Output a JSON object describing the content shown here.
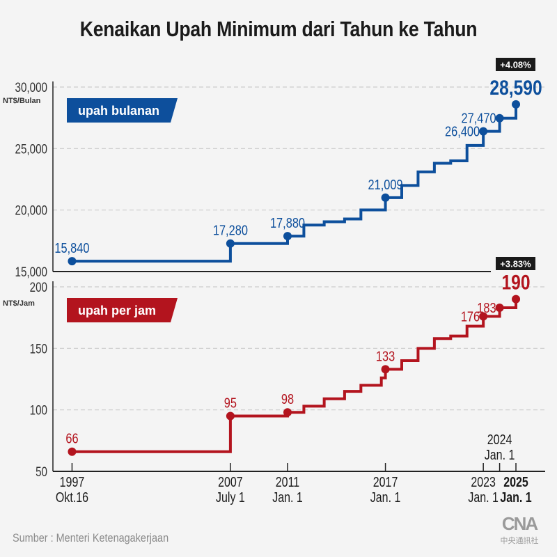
{
  "title": "Kenaikan Upah Minimum dari Tahun ke Tahun",
  "source": "Sumber : Menteri Ketenagakerjaan",
  "logo": {
    "mark": "CNA",
    "sub": "中央通訊社"
  },
  "colors": {
    "monthly": "#0d4f9c",
    "hourly": "#b3141e",
    "grid": "#cccccc",
    "badge": "#1a1a1a"
  },
  "chart_data": [
    {
      "type": "line",
      "step": true,
      "legend": "upah bulanan",
      "unit": "NT$/Bulan",
      "ylim": [
        15000,
        30000
      ],
      "yticks": [
        15000,
        20000,
        25000,
        30000
      ],
      "ytick_labels": [
        "15,000",
        "20,000",
        "25,000",
        "30,000"
      ],
      "grid": true,
      "change_badge": "+4.08%",
      "points": [
        {
          "date": "1997-10-16",
          "value": 15840,
          "label": "15,840"
        },
        {
          "date": "2007-07-01",
          "value": 17280,
          "label": "17,280"
        },
        {
          "date": "2011-01-01",
          "value": 17880,
          "label": "17,880"
        },
        {
          "date": "2012-01-01",
          "value": 18780
        },
        {
          "date": "2013-04-01",
          "value": 19047
        },
        {
          "date": "2014-07-01",
          "value": 19273
        },
        {
          "date": "2015-07-01",
          "value": 20008
        },
        {
          "date": "2017-01-01",
          "value": 21009,
          "label": "21,009"
        },
        {
          "date": "2018-01-01",
          "value": 22000
        },
        {
          "date": "2019-01-01",
          "value": 23100
        },
        {
          "date": "2020-01-01",
          "value": 23800
        },
        {
          "date": "2021-01-01",
          "value": 24000
        },
        {
          "date": "2022-01-01",
          "value": 25250
        },
        {
          "date": "2023-01-01",
          "value": 26400,
          "label": "26,400"
        },
        {
          "date": "2024-01-01",
          "value": 27470,
          "label": "27,470"
        },
        {
          "date": "2025-01-01",
          "value": 28590,
          "label": "28,590",
          "highlight": true
        }
      ]
    },
    {
      "type": "line",
      "step": true,
      "legend": "upah per jam",
      "unit": "NT$/Jam",
      "ylim": [
        50,
        200
      ],
      "yticks": [
        50,
        100,
        150,
        200
      ],
      "ytick_labels": [
        "50",
        "100",
        "150",
        "200"
      ],
      "grid": true,
      "change_badge": "+3.83%",
      "points": [
        {
          "date": "1997-10-16",
          "value": 66,
          "label": "66"
        },
        {
          "date": "2007-07-01",
          "value": 95,
          "label": "95"
        },
        {
          "date": "2011-01-01",
          "value": 98,
          "label": "98"
        },
        {
          "date": "2012-01-01",
          "value": 103
        },
        {
          "date": "2013-04-01",
          "value": 109
        },
        {
          "date": "2014-07-01",
          "value": 115
        },
        {
          "date": "2015-07-01",
          "value": 120
        },
        {
          "date": "2016-10-01",
          "value": 126
        },
        {
          "date": "2017-01-01",
          "value": 133,
          "label": "133"
        },
        {
          "date": "2018-01-01",
          "value": 140
        },
        {
          "date": "2019-01-01",
          "value": 150
        },
        {
          "date": "2020-01-01",
          "value": 158
        },
        {
          "date": "2021-01-01",
          "value": 160
        },
        {
          "date": "2022-01-01",
          "value": 168
        },
        {
          "date": "2023-01-01",
          "value": 176,
          "label": "176"
        },
        {
          "date": "2024-01-01",
          "value": 183,
          "label": "183"
        },
        {
          "date": "2025-01-01",
          "value": 190,
          "label": "190",
          "highlight": true
        }
      ]
    }
  ],
  "x_ticks": [
    {
      "date": "1997-10-16",
      "line1": "1997",
      "line2": "Okt.16"
    },
    {
      "date": "2007-07-01",
      "line1": "2007",
      "line2": "July 1"
    },
    {
      "date": "2011-01-01",
      "line1": "2011",
      "line2": "Jan. 1"
    },
    {
      "date": "2017-01-01",
      "line1": "2017",
      "line2": "Jan. 1"
    },
    {
      "date": "2023-01-01",
      "line1": "2023",
      "line2": "Jan. 1"
    },
    {
      "date": "2024-01-01",
      "line1": "2024",
      "line2": "Jan. 1",
      "above": true
    },
    {
      "date": "2025-01-01",
      "line1": "2025",
      "line2": "Jan. 1",
      "bold": true
    }
  ]
}
